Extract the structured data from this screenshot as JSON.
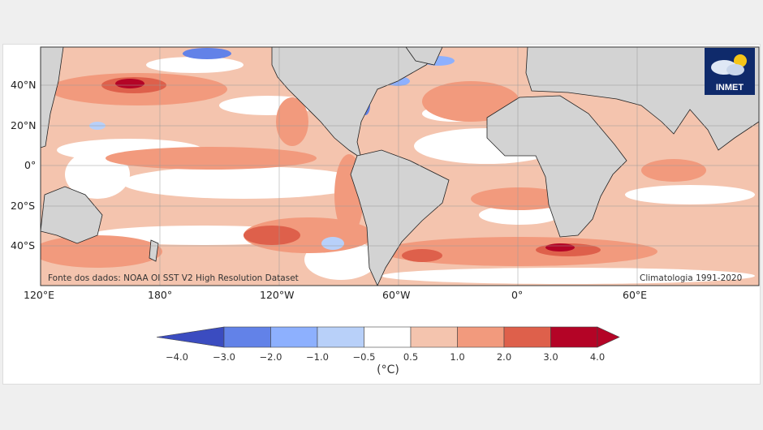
{
  "map": {
    "lat_labels": [
      "40°N",
      "20°N",
      "0°",
      "20°S",
      "40°S"
    ],
    "lon_labels": [
      "120°E",
      "180°",
      "120°W",
      "60°W",
      "0°",
      "60°E"
    ],
    "source_text": "Fonte dos dados: NOAA OI SST V2 High Resolution Dataset",
    "climatology_text": "Climatologia 1991-2020",
    "logo_text": "INMET",
    "land_color": "#d3d3d3"
  },
  "colorbar": {
    "tick_labels": [
      "−4.0",
      "−3.0",
      "−2.0",
      "−1.0",
      "−0.5",
      "0.5",
      "1.0",
      "2.0",
      "3.0",
      "4.0"
    ],
    "unit": "(°C)",
    "colors": [
      "#3b4cc0",
      "#6282e8",
      "#8db0fe",
      "#b8d0f9",
      "#ffffff",
      "#f4c4ae",
      "#f29a7d",
      "#de604b",
      "#b40426"
    ],
    "extend": "both"
  }
}
